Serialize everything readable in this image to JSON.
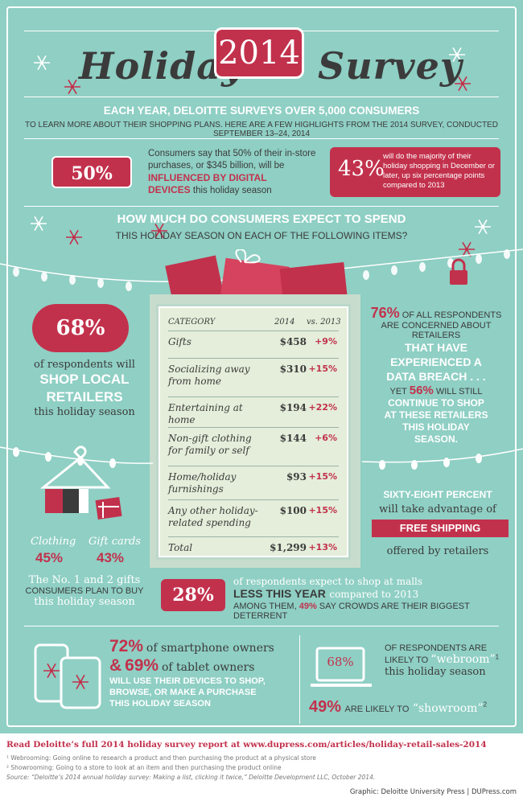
{
  "title": {
    "left": "Holiday",
    "year": "2014",
    "right": "Survey"
  },
  "intro": {
    "line1": "EACH YEAR, DELOITTE SURVEYS OVER 5,000 CONSUMERS",
    "line2": "TO LEARN MORE ABOUT THEIR SHOPPING PLANS. HERE ARE A FEW HIGHLIGHTS FROM THE 2014 SURVEY, CONDUCTED SEPTEMBER 13–24, 2014"
  },
  "stat_digital": {
    "pct": "50%",
    "text1": "Consumers say that 50% of their in-store",
    "text2": "purchases, or $345 billion, will be",
    "bold1": "INFLUENCED BY DIGITAL",
    "bold2": "DEVICES",
    "tail2": "this holiday season"
  },
  "stat_december": {
    "pct": "43%",
    "line1": "will do the majority of their",
    "line2": "holiday shopping in December or",
    "line3": "later, up six percentage points",
    "line4": "compared to 2013"
  },
  "spend_heading": {
    "line1": "HOW MUCH DO CONSUMERS EXPECT TO SPEND",
    "line2": "THIS HOLIDAY SEASON ON EACH OF THE FOLLOWING ITEMS?"
  },
  "spend_table": {
    "col_category": "CATEGORY",
    "col_year": "2014",
    "col_vs": "vs. 2013",
    "rows": [
      {
        "category": "Gifts",
        "value": "$458",
        "change": "+9%"
      },
      {
        "category": "Socializing away from home",
        "value": "$310",
        "change": "+15%"
      },
      {
        "category": "Entertaining at home",
        "value": "$194",
        "change": "+22%"
      },
      {
        "category": "Non-gift clothing for family or self",
        "value": "$144",
        "change": "+6%"
      },
      {
        "category": "Home/holiday furnishings",
        "value": "$93",
        "change": "+15%"
      },
      {
        "category": "Any other holiday-related spending",
        "value": "$100",
        "change": "+15%"
      },
      {
        "category": "Total",
        "value": "$1,299",
        "change": "+13%"
      }
    ]
  },
  "local": {
    "pct": "68%",
    "line1": "of respondents will",
    "bold1": "SHOP LOCAL",
    "bold2": "RETAILERS",
    "line4": "this holiday season"
  },
  "breach": {
    "pct": "76%",
    "line1": "OF ALL RESPONDENTS",
    "line2": "ARE CONCERNED ABOUT RETAILERS",
    "bold1": "THAT HAVE",
    "bold2": "EXPERIENCED A",
    "bold3": "DATA BREACH . . .",
    "yet": "YET",
    "pct2": "56%",
    "will": "WILL STILL",
    "bold4": "CONTINUE TO SHOP",
    "bold5": "AT THESE RETAILERS",
    "bold6": "THIS HOLIDAY",
    "bold7": "SEASON."
  },
  "shipping": {
    "line1": "SIXTY-EIGHT PERCENT",
    "line2": "will take advantage of",
    "banner": "FREE SHIPPING",
    "line4": "offered by retailers"
  },
  "gifts": {
    "clothing_label": "Clothing",
    "clothing_pct": "45%",
    "cards_label": "Gift cards",
    "cards_pct": "43%",
    "text1": "The No. 1 and 2 gifts",
    "text2": "CONSUMERS PLAN TO BUY",
    "text3": "this holiday season"
  },
  "malls": {
    "pct": "28%",
    "line1": "of respondents expect to shop at malls",
    "bold1": "LESS THIS YEAR",
    "tail1": "compared to 2013",
    "line3a": "AMONG THEM,",
    "line3pct": "49%",
    "line3b": "SAY CROWDS ARE THEIR BIGGEST DETERRENT"
  },
  "devices": {
    "pct1": "72%",
    "text1": "of smartphone owners",
    "amp": "&",
    "pct2": "69%",
    "text2": "of tablet owners",
    "bold1": "WILL USE THEIR DEVICES TO SHOP,",
    "bold2": "BROWSE, OR MAKE A PURCHASE",
    "bold3": "THIS HOLIDAY SEASON"
  },
  "webroom": {
    "pct": "68%",
    "line1": "OF RESPONDENTS ARE",
    "line2a": "LIKELY TO",
    "line2b": "“webroom”",
    "sup1": "1",
    "line3": "this holiday season",
    "pct2": "49%",
    "line4a": "ARE LIKELY TO",
    "line4b": "“showroom”",
    "sup2": "2"
  },
  "footer": {
    "link": "Read Deloitte’s full 2014 holiday survey report at www.dupress.com/articles/holiday-retail-sales-2014",
    "note1": "¹ Webrooming: Going online to research a product and then purchasing the product at a physical store",
    "note2": "² Showrooming: Going to a store to look at an item and then purchasing the product online",
    "source": "Source: “Deloitte’s 2014 annual holiday survey: Making a list, clicking it twice,” Deloitte Development LLC, October 2014.",
    "credit": "Graphic: Deloitte University Press  |  DUPress.com"
  },
  "colors": {
    "background": "#8fcfc4",
    "accent": "#c2314c",
    "dark": "#3b3b3b",
    "paper": "#e4eeda"
  },
  "icons": [
    "snowflake-icon",
    "padlock-icon",
    "gift-box-icon",
    "shopping-bag-icon",
    "hanger-icon",
    "gift-card-icon",
    "smartphone-icon",
    "tablet-icon",
    "laptop-icon",
    "string-lights-icon"
  ]
}
